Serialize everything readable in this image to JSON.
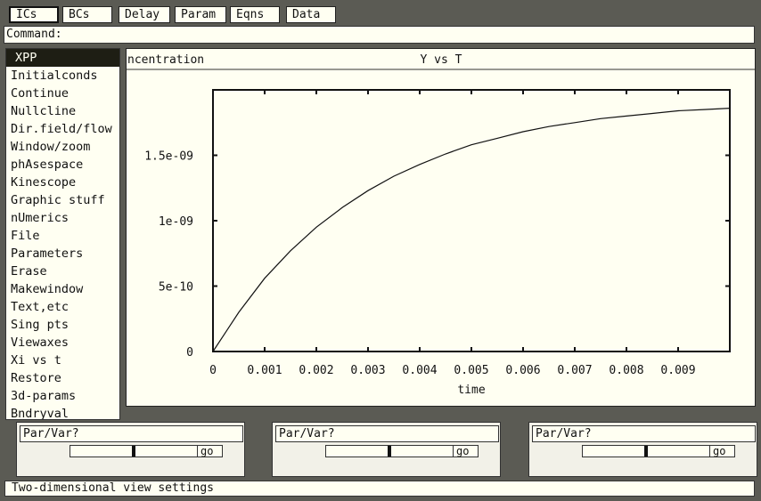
{
  "toolbar": {
    "buttons": [
      {
        "label": "ICs"
      },
      {
        "label": "BCs"
      },
      {
        "label": "Delay"
      },
      {
        "label": "Param"
      },
      {
        "label": "Eqns"
      },
      {
        "label": "Data"
      }
    ]
  },
  "command": {
    "label": "Command:"
  },
  "menu": {
    "items": [
      {
        "label": "XPP"
      },
      {
        "label": "Initialconds"
      },
      {
        "label": "Continue"
      },
      {
        "label": "Nullcline"
      },
      {
        "label": "Dir.field/flow"
      },
      {
        "label": "Window/zoom"
      },
      {
        "label": "phAsespace"
      },
      {
        "label": "Kinescope"
      },
      {
        "label": "Graphic stuff"
      },
      {
        "label": "nUmerics"
      },
      {
        "label": "File"
      },
      {
        "label": "Parameters"
      },
      {
        "label": "Erase"
      },
      {
        "label": "Makewindow"
      },
      {
        "label": "Text,etc"
      },
      {
        "label": "Sing pts"
      },
      {
        "label": "Viewaxes"
      },
      {
        "label": "Xi vs t"
      },
      {
        "label": "Restore"
      },
      {
        "label": "3d-params"
      },
      {
        "label": "Bndryval"
      }
    ]
  },
  "graph": {
    "left_label": "ncentration",
    "title": "Y vs T"
  },
  "chart_data": {
    "type": "line",
    "title": "Y vs T",
    "xlabel": "time",
    "ylabel": "",
    "xlim": [
      0,
      0.01
    ],
    "ylim": [
      0,
      2e-09
    ],
    "xticks": [
      0,
      0.001,
      0.002,
      0.003,
      0.004,
      0.005,
      0.006,
      0.007,
      0.008,
      0.009
    ],
    "xtick_labels": [
      "0",
      "0.001",
      "0.002",
      "0.003",
      "0.004",
      "0.005",
      "0.006",
      "0.007",
      "0.008",
      "0.009"
    ],
    "yticks": [
      0,
      5e-10,
      1e-09,
      1.5e-09
    ],
    "ytick_labels": [
      "0",
      "5e-10",
      "1e-09",
      "1.5e-09"
    ],
    "grid": false,
    "series": [
      {
        "x": [
          0,
          0.0005,
          0.001,
          0.0015,
          0.002,
          0.0025,
          0.003,
          0.0035,
          0.004,
          0.0045,
          0.005,
          0.0055,
          0.006,
          0.0065,
          0.007,
          0.0075,
          0.008,
          0.0085,
          0.009,
          0.0095,
          0.01
        ],
        "y": [
          0,
          3e-10,
          5.6e-10,
          7.7e-10,
          9.5e-10,
          1.1e-09,
          1.23e-09,
          1.34e-09,
          1.43e-09,
          1.51e-09,
          1.58e-09,
          1.63e-09,
          1.68e-09,
          1.72e-09,
          1.75e-09,
          1.78e-09,
          1.8e-09,
          1.82e-09,
          1.84e-09,
          1.85e-09,
          1.86e-09
        ]
      }
    ]
  },
  "sliders": [
    {
      "label": "Par/Var?",
      "go_label": "go",
      "position": 0.5
    },
    {
      "label": "Par/Var?",
      "go_label": "go",
      "position": 0.5
    },
    {
      "label": "Par/Var?",
      "go_label": "go",
      "position": 0.5
    }
  ],
  "status": {
    "text": "Two-dimensional view settings"
  },
  "colors": {
    "background": "#5b5b54",
    "panel": "#fffff2",
    "ink": "#111111"
  }
}
